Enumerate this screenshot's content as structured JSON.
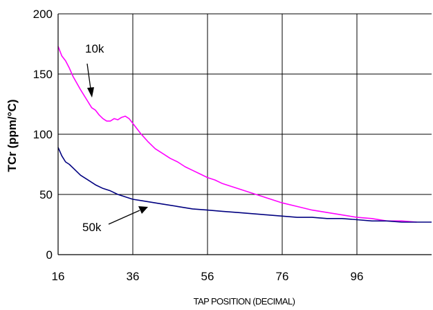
{
  "chart_data": {
    "type": "line",
    "title": "",
    "xlabel": "TAP POSITION (DECIMAL)",
    "ylabel": "TCr (ppm/°C)",
    "xlim": [
      16,
      116
    ],
    "ylim": [
      0,
      200
    ],
    "xticks": [
      16,
      36,
      56,
      76,
      96
    ],
    "yticks": [
      0,
      50,
      100,
      150,
      200
    ],
    "grid": true,
    "annotations": [
      "10k",
      "50k"
    ],
    "series": [
      {
        "name": "10k",
        "color": "#ff00ff",
        "x": [
          16,
          17,
          18,
          19,
          20,
          22,
          24,
          25,
          26,
          27,
          28,
          29,
          30,
          31,
          32,
          33,
          34,
          35,
          36,
          38,
          40,
          42,
          44,
          46,
          48,
          50,
          52,
          54,
          56,
          58,
          60,
          64,
          68,
          72,
          76,
          80,
          84,
          88,
          92,
          96,
          100,
          104,
          108,
          112
        ],
        "values": [
          173,
          165,
          161,
          155,
          148,
          137,
          127,
          122,
          120,
          116,
          113,
          111,
          111,
          113,
          112,
          114,
          115,
          113,
          109,
          101,
          94,
          88,
          84,
          80,
          77,
          73,
          70,
          67,
          64,
          62,
          59,
          55,
          51,
          47,
          43,
          40,
          37,
          35,
          33,
          31,
          30,
          28,
          28,
          27
        ]
      },
      {
        "name": "50k",
        "color": "#000080",
        "x": [
          16,
          17,
          18,
          19,
          20,
          22,
          24,
          26,
          28,
          30,
          32,
          34,
          36,
          38,
          40,
          44,
          48,
          52,
          56,
          60,
          64,
          68,
          72,
          76,
          80,
          84,
          88,
          92,
          96,
          100,
          104,
          108,
          112,
          116
        ],
        "values": [
          89,
          82,
          77,
          75,
          72,
          66,
          62,
          58,
          55,
          53,
          50,
          48,
          46,
          45,
          44,
          42,
          40,
          38,
          37,
          36,
          35,
          34,
          33,
          32,
          31,
          31,
          30,
          30,
          29,
          28,
          28,
          27,
          27,
          27
        ]
      }
    ]
  }
}
